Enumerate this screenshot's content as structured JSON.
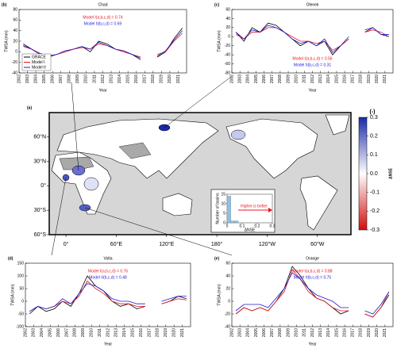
{
  "chart_data": [
    {
      "type": "line",
      "panel": "(b)",
      "title": "Chad",
      "xlabel": "Year",
      "ylabel": "TWSA (mm)",
      "x": [
        2002.5,
        2003.5,
        2004.5,
        2005.5,
        2006.5,
        2007.5,
        2008.5,
        2009.5,
        2010.5,
        2011.5,
        2012.5,
        2013.5,
        2014.5,
        2015.5,
        2016.5,
        2017.5,
        2018.5,
        2019.5,
        2020.5,
        2021.5
      ],
      "xlim": [
        2002,
        2022
      ],
      "xticks": [
        2002,
        2003,
        2004,
        2005,
        2006,
        2007,
        2008,
        2009,
        2010,
        2011,
        2012,
        2013,
        2014,
        2015,
        2016,
        2017,
        2018,
        2019,
        2020,
        2021
      ],
      "ylim": [
        -40,
        80
      ],
      "yticks": [
        -40,
        -20,
        0,
        20,
        40,
        60,
        80
      ],
      "series": [
        {
          "name": "GRACE",
          "color": "#000000",
          "values": [
            15,
            5,
            -5,
            -10,
            -5,
            0,
            5,
            10,
            0,
            20,
            15,
            5,
            0,
            -5,
            -15,
            null,
            -10,
            0,
            25,
            45
          ]
        },
        {
          "name": "Model I",
          "color": "#e8141b",
          "values": [
            10,
            5,
            -5,
            -8,
            -5,
            0,
            5,
            8,
            5,
            15,
            12,
            5,
            0,
            -5,
            -10,
            null,
            -5,
            0,
            20,
            35
          ]
        },
        {
          "name": "Model II",
          "color": "#1b1bd6",
          "values": [
            12,
            5,
            -3,
            -8,
            -5,
            2,
            5,
            10,
            5,
            18,
            12,
            5,
            2,
            -5,
            -12,
            null,
            -8,
            2,
            22,
            40
          ]
        }
      ],
      "annotations": [
        {
          "text": "Model I(a,b,c,d) = 0.74",
          "color": "#e8141b"
        },
        {
          "text": "Model II(b,c,d) = 0.69",
          "color": "#1b1bd6"
        }
      ],
      "legend": "lower left"
    },
    {
      "type": "line",
      "panel": "(c)",
      "title": "Olenek",
      "xlabel": "Year",
      "ylabel": "TWSA (mm)",
      "x": [
        2002.5,
        2003.5,
        2004.5,
        2005.5,
        2006.5,
        2007.5,
        2008.5,
        2009.5,
        2010.5,
        2011.5,
        2012.5,
        2013.5,
        2014.5,
        2015.5,
        2016.5,
        2017.5,
        2018.5,
        2019.5,
        2020.5,
        2021.5
      ],
      "xlim": [
        2002,
        2022
      ],
      "xticks": [
        2002,
        2003,
        2004,
        2005,
        2006,
        2007,
        2008,
        2009,
        2010,
        2011,
        2012,
        2013,
        2014,
        2015,
        2016,
        2017,
        2018,
        2019,
        2020,
        2021
      ],
      "ylim": [
        -80,
        60
      ],
      "yticks": [
        -80,
        -60,
        -40,
        -20,
        0,
        20,
        40,
        60
      ],
      "series": [
        {
          "color": "#000000",
          "values": [
            10,
            -10,
            20,
            10,
            30,
            25,
            10,
            -5,
            -20,
            -10,
            -20,
            -10,
            -40,
            -20,
            -5,
            null,
            10,
            20,
            5,
            0
          ]
        },
        {
          "color": "#e8141b",
          "values": [
            5,
            -5,
            10,
            10,
            20,
            20,
            10,
            0,
            -10,
            -10,
            -15,
            -10,
            -30,
            -20,
            -5,
            null,
            10,
            15,
            10,
            0
          ]
        },
        {
          "color": "#1b1bd6",
          "values": [
            10,
            -5,
            15,
            10,
            25,
            20,
            10,
            -5,
            -15,
            -10,
            -20,
            -5,
            -35,
            -20,
            0,
            null,
            15,
            20,
            5,
            5
          ]
        }
      ],
      "annotations": [
        {
          "text": "Model I(a,b,c,d) = 0.56",
          "color": "#e8141b"
        },
        {
          "text": "Model II(b,c,d) = 0.31",
          "color": "#1b1bd6"
        }
      ],
      "annotation_position": "bottom"
    },
    {
      "type": "map",
      "panel": "(a)",
      "lon_lim": [
        -20,
        340
      ],
      "lat_lim": [
        -60,
        90
      ],
      "lon_ticks": [
        {
          "value": 0,
          "label": "0°"
        },
        {
          "value": 60,
          "label": "60°E"
        },
        {
          "value": 120,
          "label": "120°E"
        },
        {
          "value": 180,
          "label": "180°"
        },
        {
          "value": 240,
          "label": "120°W"
        },
        {
          "value": 300,
          "label": "60°W"
        }
      ],
      "lat_ticks": [
        {
          "value": 60,
          "label": "60°N"
        },
        {
          "value": 30,
          "label": "30°N"
        },
        {
          "value": 0,
          "label": "0°"
        },
        {
          "value": -30,
          "label": "30°S"
        },
        {
          "value": -60,
          "label": "60°S"
        }
      ],
      "colorbar": {
        "label": "ΔNSE",
        "unit": "(-)",
        "lim": [
          -0.3,
          0.3
        ],
        "ticks": [
          0.3,
          0.2,
          0.1,
          {
            "value": 0,
            "label": "0.0"
          },
          -0.1,
          -0.2,
          -0.3
        ]
      },
      "inset": {
        "type": "histogram",
        "xlabel": "ΔNSE",
        "ylabel": "Number of basins",
        "color": "#8fc1e3",
        "bins": [
          0,
          0.025,
          0.05,
          0.075,
          0.1,
          0.125,
          0.15,
          0.175,
          0.2,
          0.225,
          0.25,
          0.275,
          0.3
        ],
        "counts": [
          14,
          1,
          1,
          0,
          0,
          0,
          0,
          0,
          0,
          0,
          0,
          0
        ],
        "xlim": [
          0,
          0.3
        ],
        "xticks": [
          0,
          0.1,
          0.2,
          0.3
        ],
        "ylim": [
          0,
          15
        ],
        "yticks": [
          0,
          5,
          10,
          15
        ],
        "annotation": "Higher is better",
        "annotation_color": "#e8141b"
      }
    },
    {
      "type": "line",
      "panel": "(d)",
      "title": "Volta",
      "xlabel": "Year",
      "ylabel": "TWSA (mm)",
      "x": [
        2002.5,
        2003.5,
        2004.5,
        2005.5,
        2006.5,
        2007.5,
        2008.5,
        2009.5,
        2010.5,
        2011.5,
        2012.5,
        2013.5,
        2014.5,
        2015.5,
        2016.5,
        2017.5,
        2018.5,
        2019.5,
        2020.5,
        2021.5
      ],
      "xlim": [
        2002,
        2022
      ],
      "xticks": [
        2002,
        2003,
        2004,
        2005,
        2006,
        2007,
        2008,
        2009,
        2010,
        2011,
        2012,
        2013,
        2014,
        2015,
        2016,
        2017,
        2018,
        2019,
        2020,
        2021
      ],
      "ylim": [
        -100,
        150
      ],
      "yticks": [
        -100,
        -50,
        0,
        50,
        100,
        150
      ],
      "series": [
        {
          "color": "#000000",
          "values": [
            -50,
            -20,
            -40,
            -30,
            0,
            -20,
            30,
            100,
            60,
            40,
            0,
            -20,
            -10,
            -30,
            -20,
            null,
            -10,
            0,
            20,
            10
          ]
        },
        {
          "color": "#e8141b",
          "values": [
            -40,
            -20,
            -30,
            -20,
            0,
            -10,
            20,
            80,
            50,
            30,
            0,
            -10,
            -10,
            -20,
            -20,
            null,
            -10,
            0,
            10,
            5
          ]
        },
        {
          "color": "#1b1bd6",
          "values": [
            -40,
            -20,
            -30,
            -20,
            10,
            -10,
            30,
            70,
            60,
            40,
            10,
            0,
            0,
            -10,
            -10,
            null,
            0,
            10,
            20,
            20
          ]
        }
      ],
      "annotations": [
        {
          "text": "Model I(a,b,c,d) = 0.76",
          "color": "#e8141b"
        },
        {
          "text": "Model II(b,c,d) = 0.48",
          "color": "#1b1bd6"
        }
      ]
    },
    {
      "type": "line",
      "panel": "(e)",
      "title": "Orange",
      "xlabel": "Year",
      "ylabel": "TWSA (mm)",
      "x": [
        2002.5,
        2003.5,
        2004.5,
        2005.5,
        2006.5,
        2007.5,
        2008.5,
        2009.5,
        2010.5,
        2011.5,
        2012.5,
        2013.5,
        2014.5,
        2015.5,
        2016.5,
        2017.5,
        2018.5,
        2019.5,
        2020.5,
        2021.5
      ],
      "xlim": [
        2002,
        2022
      ],
      "xticks": [
        2002,
        2003,
        2004,
        2005,
        2006,
        2007,
        2008,
        2009,
        2010,
        2011,
        2012,
        2013,
        2014,
        2015,
        2016,
        2017,
        2018,
        2019,
        2020,
        2021
      ],
      "ylim": [
        -40,
        60
      ],
      "yticks": [
        -40,
        -20,
        0,
        20,
        40,
        60
      ],
      "series": [
        {
          "color": "#000000",
          "values": [
            -20,
            -10,
            -15,
            -10,
            -15,
            0,
            20,
            55,
            40,
            20,
            5,
            0,
            -10,
            -20,
            -15,
            null,
            -20,
            -25,
            -10,
            10
          ]
        },
        {
          "color": "#e8141b",
          "values": [
            -20,
            -10,
            -15,
            -10,
            -15,
            0,
            15,
            50,
            35,
            15,
            5,
            0,
            -10,
            -15,
            -15,
            null,
            -20,
            -25,
            -10,
            15
          ]
        },
        {
          "color": "#1b1bd6",
          "values": [
            -15,
            -5,
            -5,
            -5,
            -10,
            5,
            20,
            45,
            35,
            20,
            10,
            5,
            0,
            -10,
            -10,
            null,
            -15,
            -20,
            -5,
            15
          ]
        }
      ],
      "annotations": [
        {
          "text": "Model I(a,b,c,d) = 0.88",
          "color": "#e8141b"
        },
        {
          "text": "Model II(b,c,d) = 0.75",
          "color": "#1b1bd6"
        }
      ]
    }
  ]
}
